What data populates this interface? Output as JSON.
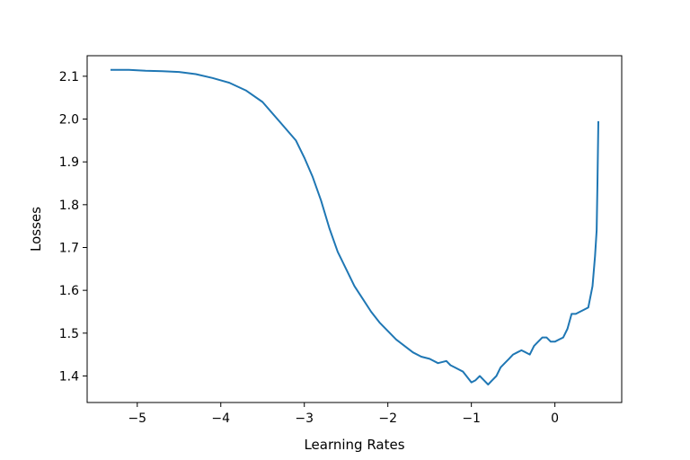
{
  "chart_data": {
    "type": "line",
    "title": "",
    "xlabel": "Learning Rates",
    "ylabel": "Losses",
    "xlim": [
      -5.6,
      0.8
    ],
    "ylim": [
      1.338,
      2.148
    ],
    "xticks": [
      -5,
      -4,
      -3,
      -2,
      -1,
      0
    ],
    "xtick_labels": [
      "−5",
      "−4",
      "−3",
      "−2",
      "−1",
      "0"
    ],
    "yticks": [
      1.4,
      1.5,
      1.6,
      1.7,
      1.8,
      1.9,
      2.0,
      2.1
    ],
    "ytick_labels": [
      "1.4",
      "1.5",
      "1.6",
      "1.7",
      "1.8",
      "1.9",
      "2.0",
      "2.1"
    ],
    "grid": false,
    "series": [
      {
        "color": "#1f77b4",
        "x": [
          -5.32,
          -5.1,
          -4.9,
          -4.7,
          -4.5,
          -4.3,
          -4.1,
          -3.9,
          -3.7,
          -3.5,
          -3.3,
          -3.1,
          -3.0,
          -2.9,
          -2.8,
          -2.7,
          -2.6,
          -2.5,
          -2.4,
          -2.3,
          -2.2,
          -2.1,
          -2.0,
          -1.9,
          -1.8,
          -1.7,
          -1.6,
          -1.5,
          -1.4,
          -1.3,
          -1.25,
          -1.2,
          -1.15,
          -1.1,
          -1.0,
          -0.95,
          -0.9,
          -0.85,
          -0.8,
          -0.75,
          -0.7,
          -0.65,
          -0.6,
          -0.55,
          -0.5,
          -0.45,
          -0.4,
          -0.35,
          -0.3,
          -0.25,
          -0.2,
          -0.15,
          -0.1,
          -0.05,
          0.0,
          0.05,
          0.1,
          0.15,
          0.2,
          0.25,
          0.3,
          0.35,
          0.4,
          0.45,
          0.48,
          0.5,
          0.51,
          0.52
        ],
        "values": [
          2.115,
          2.115,
          2.113,
          2.112,
          2.11,
          2.105,
          2.096,
          2.085,
          2.067,
          2.04,
          1.995,
          1.95,
          1.91,
          1.865,
          1.81,
          1.745,
          1.69,
          1.65,
          1.61,
          1.58,
          1.55,
          1.525,
          1.505,
          1.485,
          1.47,
          1.455,
          1.445,
          1.44,
          1.43,
          1.435,
          1.425,
          1.42,
          1.415,
          1.41,
          1.385,
          1.39,
          1.4,
          1.39,
          1.38,
          1.39,
          1.4,
          1.42,
          1.43,
          1.44,
          1.45,
          1.455,
          1.46,
          1.455,
          1.45,
          1.47,
          1.48,
          1.49,
          1.49,
          1.48,
          1.48,
          1.485,
          1.49,
          1.51,
          1.545,
          1.545,
          1.55,
          1.555,
          1.56,
          1.61,
          1.68,
          1.74,
          1.85,
          1.995
        ]
      }
    ]
  }
}
